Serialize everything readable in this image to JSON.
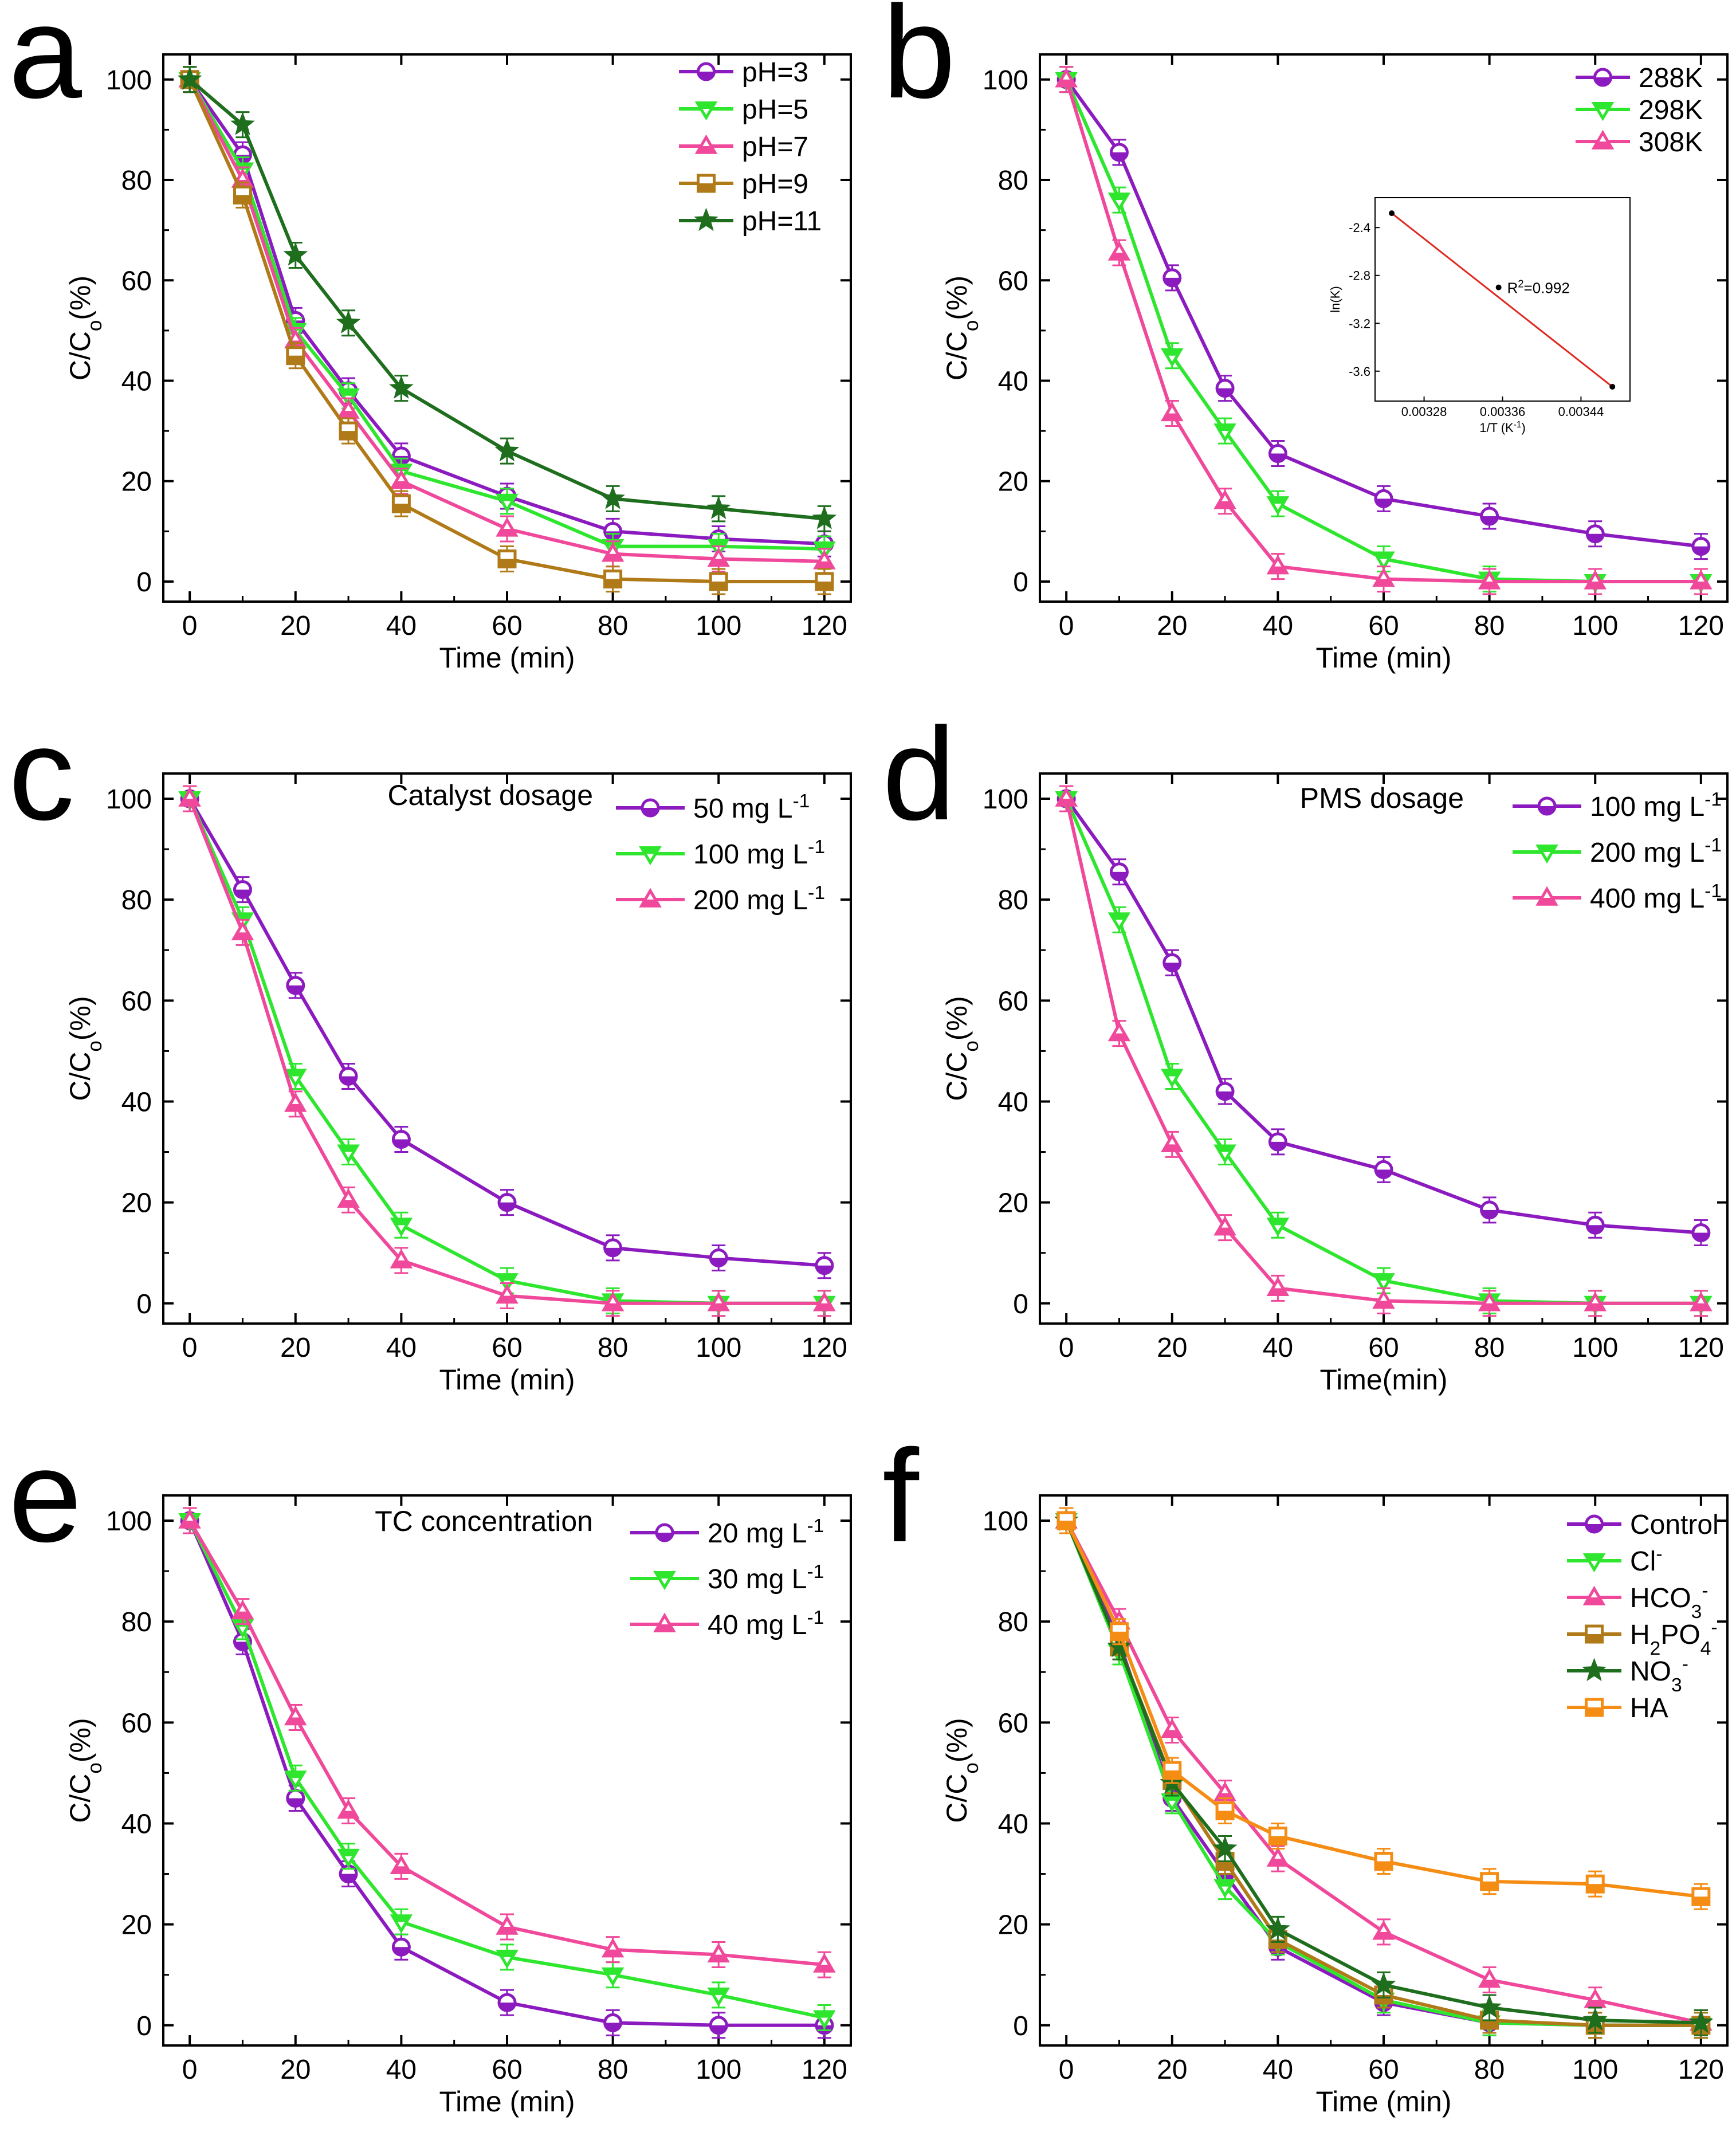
{
  "chart_data": [
    {
      "panel": "a",
      "type": "line",
      "xlabel": "Time (min)",
      "ylabel": "C/C",
      "ylabel_sub": "o",
      "ylabel_suffix": "(%)",
      "xlim": [
        -5,
        125
      ],
      "ylim": [
        -4,
        105
      ],
      "xticks": [
        0,
        20,
        40,
        60,
        80,
        100,
        120
      ],
      "yticks": [
        0,
        20,
        40,
        60,
        80,
        100
      ],
      "annotation": "",
      "x": [
        0,
        10,
        20,
        30,
        40,
        60,
        80,
        100,
        120
      ],
      "series": [
        {
          "name": "pH=3",
          "label": "pH=3",
          "color": "#8c1bbf",
          "marker": "circle",
          "values": [
            100,
            85,
            52,
            38,
            25,
            17,
            10,
            8.5,
            7.5
          ]
        },
        {
          "name": "pH=5",
          "label": "pH=5",
          "color": "#2ee62e",
          "marker": "triangle-down",
          "values": [
            100,
            82,
            50,
            37,
            22,
            16,
            7,
            7,
            6.5
          ]
        },
        {
          "name": "pH=7",
          "label": "pH=7",
          "color": "#f0489a",
          "marker": "triangle-up",
          "values": [
            100,
            80,
            48,
            34,
            20,
            10.5,
            5.5,
            4.5,
            4
          ]
        },
        {
          "name": "pH=9",
          "label": "pH=9",
          "color": "#b07a18",
          "marker": "square",
          "values": [
            100,
            77,
            45,
            30,
            15.5,
            4.5,
            0.5,
            0,
            0
          ]
        },
        {
          "name": "pH=11",
          "label": "pH=11",
          "color": "#1e6e1e",
          "marker": "star",
          "values": [
            100,
            91,
            65,
            51.5,
            38.5,
            26,
            16.5,
            14.5,
            12.5
          ]
        }
      ]
    },
    {
      "panel": "b",
      "type": "line",
      "xlabel": "Time (min)",
      "ylabel": "C/C",
      "ylabel_sub": "o",
      "ylabel_suffix": "(%)",
      "xlim": [
        -5,
        125
      ],
      "ylim": [
        -4,
        105
      ],
      "xticks": [
        0,
        20,
        40,
        60,
        80,
        100,
        120
      ],
      "yticks": [
        0,
        20,
        40,
        60,
        80,
        100
      ],
      "annotation": "",
      "x": [
        0,
        10,
        20,
        30,
        40,
        60,
        80,
        100,
        120
      ],
      "series": [
        {
          "name": "288K",
          "label": "288K",
          "color": "#8c1bbf",
          "marker": "circle",
          "values": [
            100,
            85.5,
            60.5,
            38.5,
            25.5,
            16.5,
            13,
            9.5,
            7
          ]
        },
        {
          "name": "298K",
          "label": "298K",
          "color": "#2ee62e",
          "marker": "triangle-down",
          "values": [
            100,
            76,
            45,
            30,
            15.5,
            4.5,
            0.5,
            0,
            0
          ]
        },
        {
          "name": "308K",
          "label": "308K",
          "color": "#f0489a",
          "marker": "triangle-up",
          "values": [
            100,
            65.5,
            33.5,
            16,
            3,
            0.5,
            0,
            0,
            0
          ]
        }
      ],
      "inset": {
        "type": "scatter-fit",
        "xlabel": "1/T (K",
        "xlabel_sup": "-1",
        "xlabel_suffix": ")",
        "ylabel": "ln(K)",
        "xlim": [
          0.00323,
          0.00349
        ],
        "ylim": [
          -3.85,
          -2.15
        ],
        "xticks": [
          0.00328,
          0.00336,
          0.00344
        ],
        "xtick_labels": [
          "0.00328",
          "0.00336",
          "0.00344"
        ],
        "yticks": [
          -2.4,
          -2.8,
          -3.2,
          -3.6
        ],
        "ytick_labels": [
          "-2.4",
          "-2.8",
          "-3.2",
          "-3.6"
        ],
        "x": [
          0.003247,
          0.003356,
          0.003472
        ],
        "y": [
          -2.28,
          -2.9,
          -3.73
        ],
        "fit_color": "#e0281e",
        "annotation": "R",
        "annotation_sup": "2",
        "annotation_suffix": "=0.992"
      }
    },
    {
      "panel": "c",
      "type": "line",
      "xlabel": "Time (min)",
      "ylabel": "C/C",
      "ylabel_sub": "o",
      "ylabel_suffix": "(%)",
      "xlim": [
        -5,
        125
      ],
      "ylim": [
        -4,
        105
      ],
      "xticks": [
        0,
        20,
        40,
        60,
        80,
        100,
        120
      ],
      "yticks": [
        0,
        20,
        40,
        60,
        80,
        100
      ],
      "annotation": "Catalyst dosage",
      "x": [
        0,
        10,
        20,
        30,
        40,
        60,
        80,
        100,
        120
      ],
      "series": [
        {
          "name": "50 mg L-1",
          "label": "50 mg L",
          "label_sup": "-1",
          "color": "#8c1bbf",
          "marker": "circle",
          "values": [
            100,
            82,
            63,
            45,
            32.5,
            20,
            11,
            9,
            7.5
          ]
        },
        {
          "name": "100 mg L-1",
          "label": "100 mg L",
          "label_sup": "-1",
          "color": "#2ee62e",
          "marker": "triangle-down",
          "values": [
            100,
            76,
            45,
            30,
            15.5,
            4.5,
            0.5,
            0,
            0
          ]
        },
        {
          "name": "200 mg L-1",
          "label": "200 mg L",
          "label_sup": "-1",
          "color": "#f0489a",
          "marker": "triangle-up",
          "values": [
            100,
            73.5,
            39.5,
            20.5,
            8.5,
            1.5,
            0,
            0,
            0
          ]
        }
      ]
    },
    {
      "panel": "d",
      "type": "line",
      "xlabel": "Time(min)",
      "ylabel": "C/C",
      "ylabel_sub": "o",
      "ylabel_suffix": "(%)",
      "xlim": [
        -5,
        125
      ],
      "ylim": [
        -4,
        105
      ],
      "xticks": [
        0,
        20,
        40,
        60,
        80,
        100,
        120
      ],
      "yticks": [
        0,
        20,
        40,
        60,
        80,
        100
      ],
      "annotation": "PMS dosage",
      "x": [
        0,
        10,
        20,
        30,
        40,
        60,
        80,
        100,
        120
      ],
      "series": [
        {
          "name": "100 mg L-1",
          "label": "100 mg L",
          "label_sup": "-1",
          "color": "#8c1bbf",
          "marker": "circle",
          "values": [
            100,
            85.5,
            67.5,
            42,
            32,
            26.5,
            18.5,
            15.5,
            14
          ]
        },
        {
          "name": "200 mg L-1",
          "label": "200 mg L",
          "label_sup": "-1",
          "color": "#2ee62e",
          "marker": "triangle-down",
          "values": [
            100,
            76,
            45,
            30,
            15.5,
            4.5,
            0.5,
            0,
            0
          ]
        },
        {
          "name": "400 mg L-1",
          "label": "400 mg L",
          "label_sup": "-1",
          "color": "#f0489a",
          "marker": "triangle-up",
          "values": [
            100,
            53.5,
            31.5,
            15,
            3,
            0.5,
            0,
            0,
            0
          ]
        }
      ]
    },
    {
      "panel": "e",
      "type": "line",
      "xlabel": "Time (min)",
      "ylabel": "C/C",
      "ylabel_sub": "o",
      "ylabel_suffix": "(%)",
      "xlim": [
        -5,
        125
      ],
      "ylim": [
        -4,
        105
      ],
      "xticks": [
        0,
        20,
        40,
        60,
        80,
        100,
        120
      ],
      "yticks": [
        0,
        20,
        40,
        60,
        80,
        100
      ],
      "annotation": "TC concentration",
      "x": [
        0,
        10,
        20,
        30,
        40,
        60,
        80,
        100,
        120
      ],
      "series": [
        {
          "name": "20 mg L-1",
          "label": "20 mg L",
          "label_sup": "-1",
          "color": "#8c1bbf",
          "marker": "circle",
          "values": [
            100,
            76,
            45,
            30,
            15.5,
            4.5,
            0.5,
            0,
            0
          ]
        },
        {
          "name": "30 mg L-1",
          "label": "30 mg L",
          "label_sup": "-1",
          "color": "#2ee62e",
          "marker": "triangle-down",
          "values": [
            100,
            79,
            49,
            33.5,
            20.5,
            13.5,
            10,
            6,
            1.5
          ]
        },
        {
          "name": "40 mg L-1",
          "label": "40 mg L",
          "label_sup": "-1",
          "color": "#f0489a",
          "marker": "triangle-up",
          "values": [
            100,
            82,
            61,
            42.5,
            31.5,
            19.5,
            15,
            14,
            12
          ]
        }
      ]
    },
    {
      "panel": "f",
      "type": "line",
      "xlabel": "Time (min)",
      "ylabel": "C/C",
      "ylabel_sub": "o",
      "ylabel_suffix": "(%)",
      "xlim": [
        -5,
        125
      ],
      "ylim": [
        -4,
        105
      ],
      "xticks": [
        0,
        20,
        40,
        60,
        80,
        100,
        120
      ],
      "yticks": [
        0,
        20,
        40,
        60,
        80,
        100
      ],
      "annotation": "",
      "x": [
        0,
        10,
        20,
        30,
        40,
        60,
        80,
        100,
        120
      ],
      "series": [
        {
          "name": "Control",
          "label": "Control",
          "color": "#8c1bbf",
          "marker": "circle",
          "values": [
            100,
            76,
            45,
            30,
            15.5,
            4.5,
            0.5,
            0,
            0
          ]
        },
        {
          "name": "Cl-",
          "label": "Cl",
          "label_sup": "-",
          "color": "#2ee62e",
          "marker": "triangle-down",
          "values": [
            100,
            74,
            44.5,
            27.5,
            16.5,
            5,
            0.5,
            0,
            0
          ]
        },
        {
          "name": "HCO3-",
          "label": "HCO",
          "label_sub": "3",
          "label_sup": "-",
          "color": "#f0489a",
          "marker": "triangle-up",
          "values": [
            100,
            80,
            58.5,
            46,
            33,
            18.5,
            9,
            5,
            0.5
          ]
        },
        {
          "name": "H2PO4-",
          "label": "H",
          "label_parts": [
            [
              "H",
              ""
            ],
            [
              "2",
              "sub"
            ],
            [
              "PO",
              ""
            ],
            [
              "4",
              "sub"
            ],
            [
              "-",
              "sup"
            ]
          ],
          "color": "#b07a18",
          "marker": "square",
          "values": [
            100,
            75,
            48.5,
            32.5,
            17,
            6,
            1,
            0,
            0
          ]
        },
        {
          "name": "NO3-",
          "label": "NO",
          "label_sub": "3",
          "label_sup": "-",
          "color": "#1e6e1e",
          "marker": "star",
          "values": [
            100,
            75,
            48,
            35,
            19,
            8,
            3.5,
            1,
            0.5
          ]
        },
        {
          "name": "HA",
          "label": "HA",
          "color": "#f58c14",
          "marker": "square-half",
          "values": [
            100,
            78,
            50.5,
            42.5,
            37.5,
            32.5,
            28.5,
            28,
            25.5
          ]
        }
      ]
    }
  ]
}
